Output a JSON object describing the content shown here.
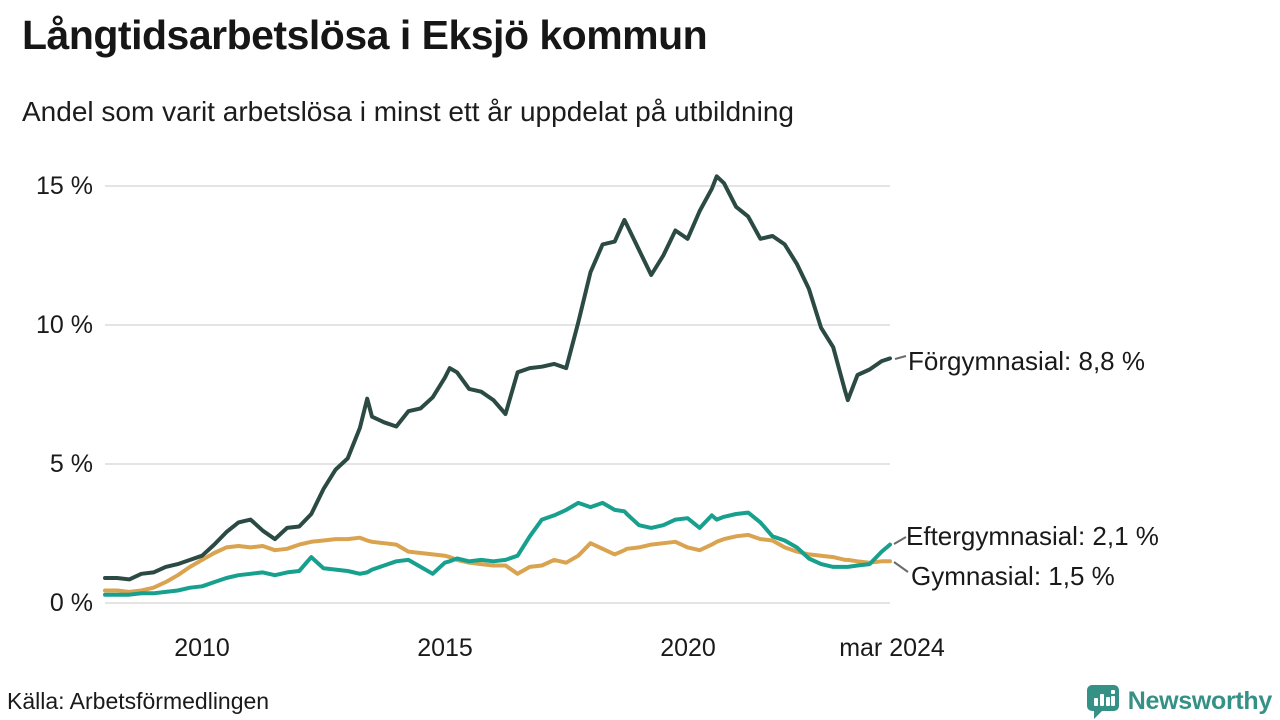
{
  "header": {
    "title": "Långtidsarbetslösa i Eksjö kommun",
    "subtitle": "Andel som varit arbetslösa i minst ett år uppdelat på utbildning"
  },
  "footer": {
    "source": "Källa: Arbetsförmedlingen",
    "brand": "Newsworthy"
  },
  "colors": {
    "text": "#1a1a1a",
    "grid": "#e4e4e4",
    "connector": "#6b6b6b",
    "forgymnasial": "#2b4a43",
    "eftergymnasial": "#17a08e",
    "gymnasial": "#d9a34f",
    "brand_teal": "#359185"
  },
  "chart_data": {
    "type": "line",
    "title": "Långtidsarbetslösa i Eksjö kommun",
    "subtitle": "Andel som varit arbetslösa i minst ett år uppdelat på utbildning",
    "unit": "%",
    "grid": "horizontal",
    "legend_position": "right-end-labels",
    "ylim": [
      0,
      15.5
    ],
    "grid_values": [
      0,
      5,
      10,
      15
    ],
    "ytick_labels": [
      "15 %",
      "10 %",
      "5 %",
      "0 %"
    ],
    "xtick_labels": [
      "2010",
      "2015",
      "2020",
      "mar 2024"
    ],
    "x_range": [
      "2008",
      "mar 2024"
    ],
    "x": [
      2008.0,
      2008.25,
      2008.5,
      2008.75,
      2009.0,
      2009.25,
      2009.5,
      2009.75,
      2010.0,
      2010.25,
      2010.5,
      2010.75,
      2011.0,
      2011.25,
      2011.5,
      2011.75,
      2012.0,
      2012.25,
      2012.5,
      2012.75,
      2013.0,
      2013.25,
      2013.4,
      2013.5,
      2013.75,
      2014.0,
      2014.25,
      2014.5,
      2014.75,
      2015.0,
      2015.1,
      2015.25,
      2015.5,
      2015.75,
      2016.0,
      2016.25,
      2016.5,
      2016.75,
      2017.0,
      2017.25,
      2017.5,
      2017.75,
      2018.0,
      2018.25,
      2018.5,
      2018.7,
      2018.75,
      2019.0,
      2019.25,
      2019.5,
      2019.75,
      2020.0,
      2020.25,
      2020.5,
      2020.6,
      2020.75,
      2021.0,
      2021.25,
      2021.5,
      2021.75,
      2022.0,
      2022.25,
      2022.5,
      2022.75,
      2023.0,
      2023.25,
      2023.3,
      2023.5,
      2023.75,
      2024.0,
      2024.17
    ],
    "series": [
      {
        "id": "forgymnasial",
        "name": "Förgymnasial",
        "end_label": "Förgymnasial: 8,8 %",
        "end_value_text": "8,8 %",
        "end_value": 8.8,
        "color": "#2b4a43",
        "values": [
          0.9,
          0.9,
          0.85,
          1.05,
          1.1,
          1.3,
          1.4,
          1.55,
          1.7,
          2.1,
          2.55,
          2.9,
          3.0,
          2.6,
          2.3,
          2.7,
          2.75,
          3.2,
          4.1,
          4.8,
          5.2,
          6.3,
          7.35,
          6.7,
          6.5,
          6.35,
          6.9,
          7.0,
          7.4,
          8.1,
          8.45,
          8.3,
          7.7,
          7.6,
          7.3,
          6.8,
          8.3,
          8.45,
          8.5,
          8.6,
          8.45,
          10.1,
          11.9,
          12.9,
          13.0,
          13.78,
          13.6,
          12.7,
          11.8,
          12.5,
          13.4,
          13.1,
          14.1,
          14.9,
          15.35,
          15.1,
          14.25,
          13.9,
          13.1,
          13.2,
          12.9,
          12.2,
          11.3,
          9.9,
          9.2,
          7.6,
          7.3,
          8.2,
          8.4,
          8.7,
          8.8
        ]
      },
      {
        "id": "eftergymnasial",
        "name": "Eftergymnasial",
        "end_label": "Eftergymnasial: 2,1 %",
        "end_value_text": "2,1 %",
        "end_value": 2.1,
        "color": "#17a08e",
        "values": [
          0.3,
          0.3,
          0.3,
          0.35,
          0.35,
          0.4,
          0.45,
          0.55,
          0.6,
          0.75,
          0.9,
          1.0,
          1.05,
          1.1,
          1.0,
          1.1,
          1.15,
          1.65,
          1.25,
          1.2,
          1.15,
          1.05,
          1.1,
          1.2,
          1.35,
          1.5,
          1.55,
          1.3,
          1.05,
          1.45,
          1.5,
          1.6,
          1.5,
          1.55,
          1.5,
          1.55,
          1.7,
          2.4,
          3.0,
          3.15,
          3.35,
          3.6,
          3.45,
          3.6,
          3.35,
          3.3,
          3.2,
          2.8,
          2.7,
          2.8,
          3.0,
          3.05,
          2.7,
          3.15,
          3.0,
          3.1,
          3.2,
          3.25,
          2.9,
          2.4,
          2.25,
          2.0,
          1.6,
          1.4,
          1.3,
          1.3,
          1.3,
          1.35,
          1.4,
          1.85,
          2.1
        ]
      },
      {
        "id": "gymnasial",
        "name": "Gymnasial",
        "end_label": "Gymnasial: 1,5 %",
        "end_value_text": "1,5 %",
        "end_value": 1.5,
        "color": "#d9a34f",
        "values": [
          0.45,
          0.45,
          0.4,
          0.45,
          0.55,
          0.75,
          1.0,
          1.3,
          1.55,
          1.8,
          2.0,
          2.05,
          2.0,
          2.05,
          1.9,
          1.95,
          2.1,
          2.2,
          2.25,
          2.3,
          2.3,
          2.35,
          2.25,
          2.2,
          2.15,
          2.1,
          1.85,
          1.8,
          1.75,
          1.7,
          1.65,
          1.55,
          1.45,
          1.4,
          1.35,
          1.35,
          1.05,
          1.3,
          1.35,
          1.55,
          1.45,
          1.7,
          2.15,
          1.95,
          1.75,
          1.9,
          1.95,
          2.0,
          2.1,
          2.15,
          2.2,
          2.0,
          1.9,
          2.1,
          2.2,
          2.3,
          2.4,
          2.45,
          2.3,
          2.25,
          2.0,
          1.85,
          1.75,
          1.7,
          1.65,
          1.55,
          1.55,
          1.5,
          1.45,
          1.5,
          1.5
        ]
      }
    ]
  }
}
